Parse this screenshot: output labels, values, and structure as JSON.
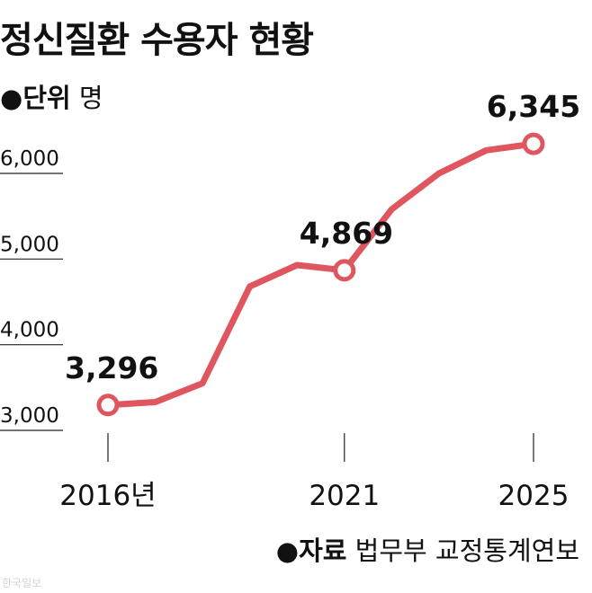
{
  "title": "정신질환 수용자 현황",
  "unit": {
    "bullet": "●",
    "key": "단위",
    "value": "명"
  },
  "source": {
    "bullet": "●",
    "key": "자료",
    "value": "법무부 교정통계연보"
  },
  "credit": "한국일보",
  "colors": {
    "line": "#e0565e",
    "text": "#111111",
    "axis": "#222222"
  },
  "chart_data": {
    "type": "line",
    "x": [
      2016,
      2017,
      2018,
      2019,
      2020,
      2021,
      2022,
      2023,
      2024,
      2025
    ],
    "values": [
      3296,
      3330,
      3550,
      4680,
      4930,
      4869,
      5580,
      6000,
      6270,
      6345
    ],
    "ylim": [
      3000,
      6000
    ],
    "yticks": [
      {
        "value": 3000,
        "label": "3,000"
      },
      {
        "value": 4000,
        "label": "4,000"
      },
      {
        "value": 5000,
        "label": "5,000"
      },
      {
        "value": 6000,
        "label": "6,000"
      }
    ],
    "xticks": [
      {
        "x": 2016,
        "label": "2016년"
      },
      {
        "x": 2021,
        "label": "2021"
      },
      {
        "x": 2025,
        "label": "2025"
      }
    ],
    "highlights": [
      {
        "x": 2016,
        "value": 3296,
        "label": "3,296"
      },
      {
        "x": 2021,
        "value": 4869,
        "label": "4,869"
      },
      {
        "x": 2025,
        "value": 6345,
        "label": "6,345"
      }
    ],
    "grid": false
  }
}
